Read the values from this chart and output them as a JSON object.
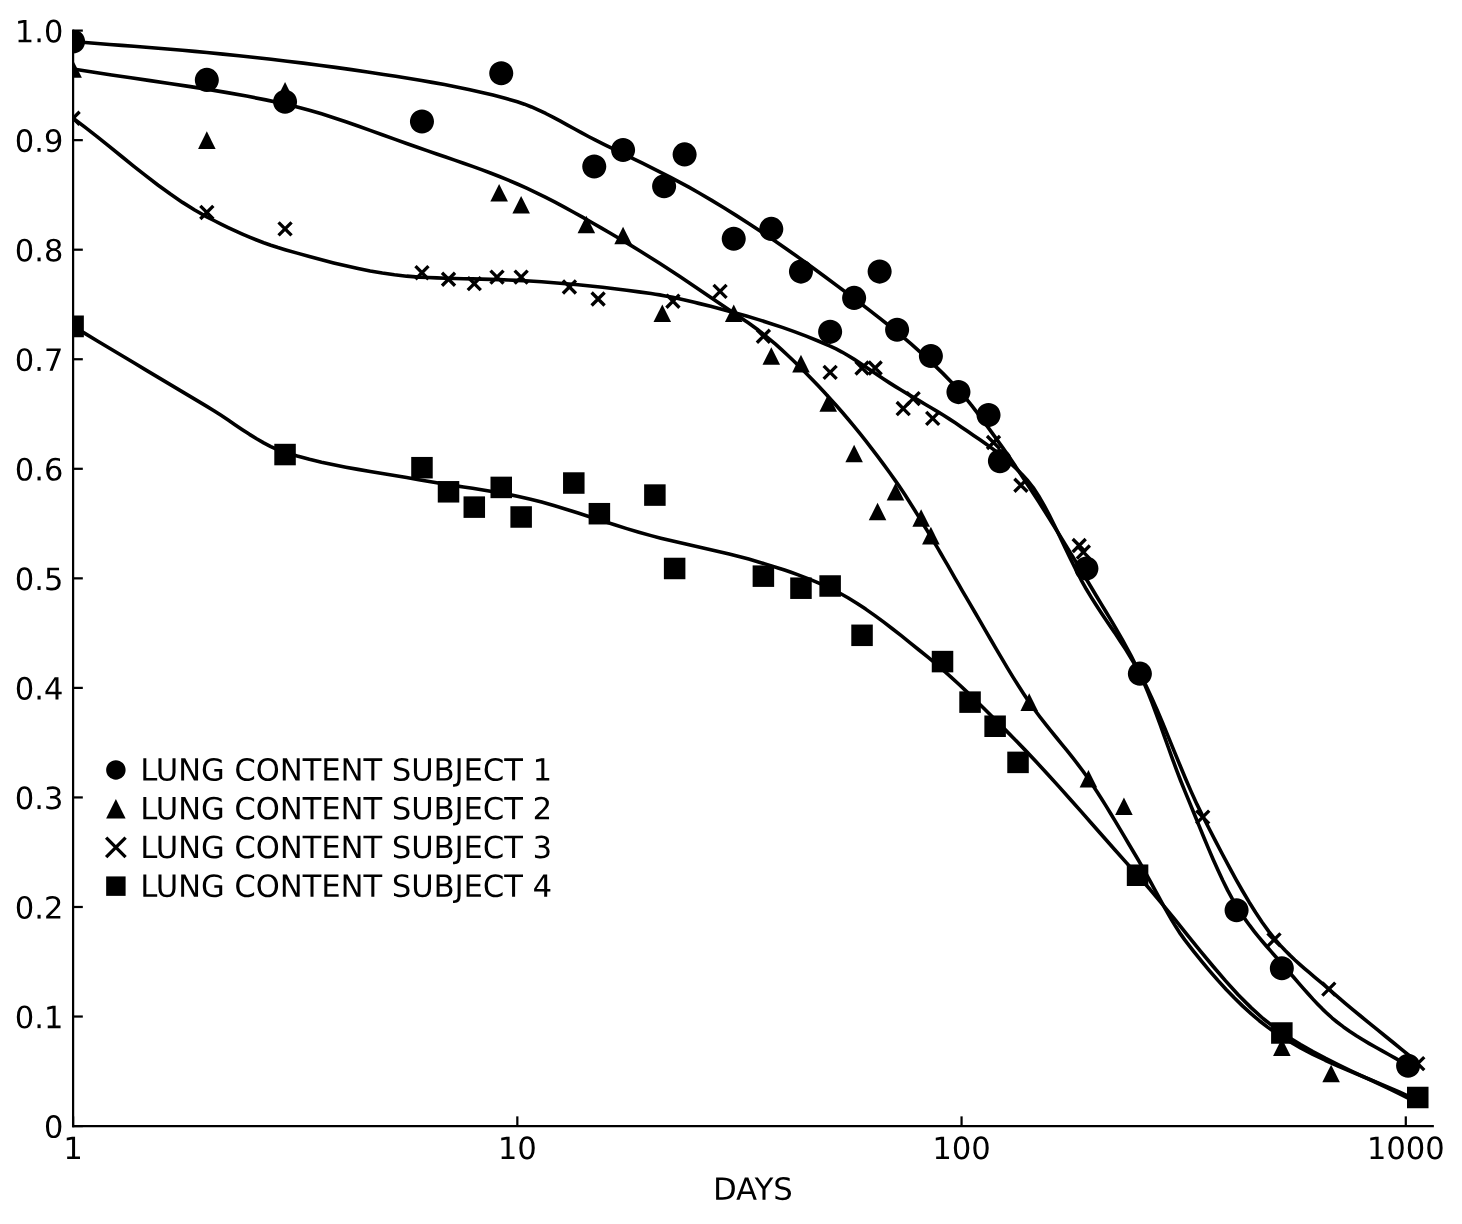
{
  "chart_data": {
    "type": "scatter",
    "xlabel": "DAYS",
    "log": "x",
    "xlim": [
      1,
      1150
    ],
    "xticks": [
      1,
      10,
      100,
      1000
    ],
    "ylim": [
      0,
      1.0
    ],
    "yticks": [
      0,
      0.1,
      0.2,
      0.3,
      0.4,
      0.5,
      0.6,
      0.7,
      0.8,
      0.9,
      {
        "value": 1.0,
        "label": "1.0"
      }
    ],
    "grid": false,
    "legend": "left",
    "series": [
      {
        "name": "LUNG CONTENT SUBJECT 1",
        "marker": "circle",
        "color": "#000000",
        "x": [
          1,
          2,
          3,
          6.1,
          9.2,
          14.9,
          17.3,
          21.4,
          23.8,
          30.7,
          37.3,
          43.5,
          50.6,
          57.3,
          65.4,
          71.6,
          85.3,
          98.4,
          115,
          122,
          191,
          252,
          416,
          526,
          1012
        ],
        "values": [
          0.99,
          0.955,
          0.935,
          0.917,
          0.961,
          0.876,
          0.891,
          0.858,
          0.887,
          0.81,
          0.819,
          0.78,
          0.725,
          0.756,
          0.78,
          0.727,
          0.703,
          0.67,
          0.649,
          0.607,
          0.509,
          0.413,
          0.197,
          0.144,
          0.055
        ]
      },
      {
        "name": "LUNG CONTENT SUBJECT 2",
        "marker": "triangle",
        "color": "#000000",
        "x": [
          1,
          2,
          3,
          9.1,
          10.2,
          14.3,
          17.3,
          21.2,
          30.7,
          37.3,
          43.5,
          50.1,
          57.3,
          64.7,
          71,
          81.1,
          85.3,
          142,
          193,
          232,
          526,
          679
        ],
        "values": [
          0.965,
          0.9,
          0.945,
          0.852,
          0.841,
          0.823,
          0.813,
          0.742,
          0.742,
          0.703,
          0.696,
          0.66,
          0.614,
          0.561,
          0.579,
          0.555,
          0.539,
          0.387,
          0.317,
          0.292,
          0.072,
          0.048
        ]
      },
      {
        "name": "LUNG CONTENT SUBJECT 3",
        "marker": "cross",
        "color": "#000000",
        "x": [
          1,
          2,
          3,
          6.1,
          7,
          8,
          9,
          10.2,
          13.1,
          15.2,
          22.4,
          28.6,
          35.8,
          50.6,
          59.7,
          63.9,
          73.9,
          77.8,
          86.1,
          118,
          136,
          184,
          188,
          349,
          505,
          671,
          1064
        ],
        "values": [
          0.92,
          0.834,
          0.819,
          0.779,
          0.773,
          0.769,
          0.775,
          0.775,
          0.766,
          0.755,
          0.753,
          0.762,
          0.721,
          0.688,
          0.692,
          0.692,
          0.655,
          0.664,
          0.646,
          0.624,
          0.585,
          0.53,
          0.524,
          0.282,
          0.17,
          0.125,
          0.057
        ]
      },
      {
        "name": "LUNG CONTENT SUBJECT 4",
        "marker": "square",
        "color": "#000000",
        "x": [
          1,
          3,
          6.1,
          7,
          8,
          9.2,
          10.2,
          13.4,
          15.3,
          20.4,
          22.6,
          35.8,
          43.5,
          50.6,
          59.7,
          90.6,
          104.5,
          119,
          134,
          249,
          526,
          1064
        ],
        "values": [
          0.73,
          0.613,
          0.601,
          0.579,
          0.565,
          0.583,
          0.556,
          0.587,
          0.559,
          0.576,
          0.509,
          0.502,
          0.491,
          0.493,
          0.448,
          0.424,
          0.387,
          0.365,
          0.332,
          0.229,
          0.085,
          0.026
        ]
      },
      {
        "type": "line",
        "line_style": "solid",
        "color": "#000000",
        "x": [
          1,
          2,
          5,
          10,
          15,
          25.6,
          52.5,
          96,
          118,
          197,
          252,
          318,
          417,
          532,
          700,
          1012
        ],
        "values": [
          0.99,
          0.98,
          0.96,
          0.935,
          0.9,
          0.852,
          0.767,
          0.677,
          0.631,
          0.49,
          0.413,
          0.306,
          0.2,
          0.146,
          0.095,
          0.055
        ]
      },
      {
        "type": "line",
        "line_style": "solid",
        "color": "#000000",
        "x": [
          1,
          3,
          6,
          10,
          17,
          30,
          35.8,
          50.6,
          71,
          85,
          104,
          142,
          193,
          249,
          318,
          510,
          1030
        ],
        "values": [
          0.965,
          0.933,
          0.893,
          0.86,
          0.81,
          0.745,
          0.723,
          0.664,
          0.589,
          0.539,
          0.478,
          0.387,
          0.317,
          0.244,
          0.17,
          0.085,
          0.026
        ]
      },
      {
        "type": "line",
        "line_style": "solid",
        "color": "#000000",
        "x": [
          1,
          2,
          3,
          6,
          10,
          20,
          25.6,
          50.6,
          71,
          100,
          141,
          191,
          252,
          349,
          509,
          671,
          1064
        ],
        "values": [
          0.92,
          0.83,
          0.8,
          0.775,
          0.772,
          0.76,
          0.751,
          0.712,
          0.675,
          0.638,
          0.589,
          0.49,
          0.413,
          0.283,
          0.17,
          0.125,
          0.058
        ]
      },
      {
        "type": "line",
        "line_style": "solid",
        "color": "#000000",
        "x": [
          1,
          2,
          3,
          6,
          10,
          20,
          34.9,
          50.6,
          84,
          131,
          249,
          510,
          1030
        ],
        "values": [
          0.73,
          0.657,
          0.615,
          0.59,
          0.575,
          0.539,
          0.515,
          0.491,
          0.428,
          0.354,
          0.229,
          0.089,
          0.024
        ]
      }
    ]
  }
}
